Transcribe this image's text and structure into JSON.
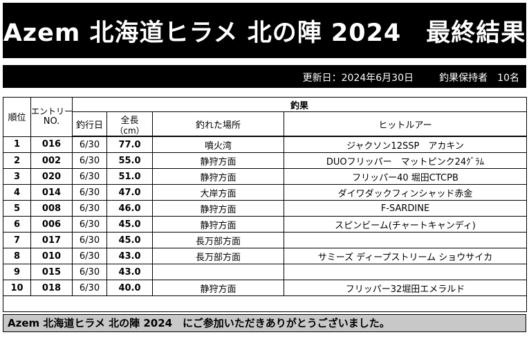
{
  "title": "Azem 北海道ヒラメ 北の陣 2024　最終結果",
  "info": {
    "updated": "更新日：2024年6月30日",
    "count": "釣果保持者　10名"
  },
  "headers": {
    "rank": "順位",
    "entry_line1": "エントリー",
    "entry_line2": "NO.",
    "catch_group": "釣果",
    "date": "釣行日",
    "length_line1": "全長",
    "length_line2": "（cm）",
    "place": "釣れた場所",
    "lure": "ヒットルアー"
  },
  "rows": [
    {
      "rank": "1",
      "entry": "016",
      "date": "6/30",
      "length": "77.0",
      "place": "噴火湾",
      "lure": "ジャクソン12SSP　アカキン"
    },
    {
      "rank": "2",
      "entry": "002",
      "date": "6/30",
      "length": "55.0",
      "place": "静狩方面",
      "lure": "DUOフリッパー　マットピンク24ｸﾞﾗﾑ"
    },
    {
      "rank": "3",
      "entry": "020",
      "date": "6/30",
      "length": "51.0",
      "place": "静狩方面",
      "lure": "フリッパー40 堀田CTCPB"
    },
    {
      "rank": "4",
      "entry": "014",
      "date": "6/30",
      "length": "47.0",
      "place": "大岸方面",
      "lure": "ダイワダックフィンシャッド赤金"
    },
    {
      "rank": "5",
      "entry": "008",
      "date": "6/30",
      "length": "46.0",
      "place": "静狩方面",
      "lure": "F-SARDINE"
    },
    {
      "rank": "6",
      "entry": "006",
      "date": "6/30",
      "length": "45.0",
      "place": "静狩方面",
      "lure": "スピンビーム(チャートキャンディ)"
    },
    {
      "rank": "7",
      "entry": "017",
      "date": "6/30",
      "length": "45.0",
      "place": "長万部方面",
      "lure": ""
    },
    {
      "rank": "8",
      "entry": "010",
      "date": "6/30",
      "length": "43.0",
      "place": "長万部方面",
      "lure": "サミーズ ディープストリーム ショウサイカ"
    },
    {
      "rank": "9",
      "entry": "015",
      "date": "6/30",
      "length": "43.0",
      "place": "",
      "lure": ""
    },
    {
      "rank": "10",
      "entry": "018",
      "date": "6/30",
      "length": "40.0",
      "place": "静狩方面",
      "lure": "フリッパー32堀田エメラルド"
    }
  ],
  "footer": "Azem 北海道ヒラメ 北の陣 2024　にご参加いただきありがとうございました。"
}
